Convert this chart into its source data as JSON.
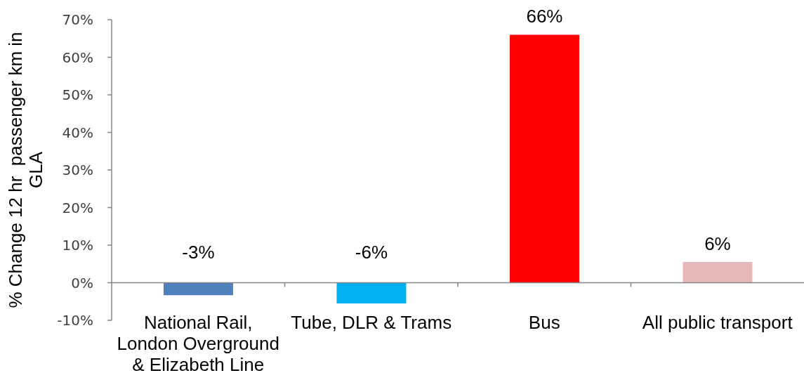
{
  "chart_data": {
    "type": "bar",
    "ylabel": "% Change 12 hr  passenger km in GLA",
    "categories": [
      "National Rail, London Overground & Elizabeth Line",
      "Tube, DLR & Trams",
      "Bus",
      "All public transport"
    ],
    "values": [
      -3.3,
      -5.5,
      66,
      5.5
    ],
    "colors": [
      "#4f81bd",
      "#00b0f0",
      "#ff0000",
      "#e6b9b8"
    ],
    "value_labels": [
      "-3%",
      "-6%",
      "66%",
      "6%"
    ],
    "ylim": [
      -10,
      70
    ],
    "yticks": [
      {
        "value": -10,
        "label": "-10%"
      },
      {
        "value": 0,
        "label": "0%"
      },
      {
        "value": 10,
        "label": "10%"
      },
      {
        "value": 20,
        "label": "20%"
      },
      {
        "value": 30,
        "label": "30%"
      },
      {
        "value": 40,
        "label": "40%"
      },
      {
        "value": 50,
        "label": "50%"
      },
      {
        "value": 60,
        "label": "60%"
      },
      {
        "value": 70,
        "label": "70%"
      }
    ]
  }
}
